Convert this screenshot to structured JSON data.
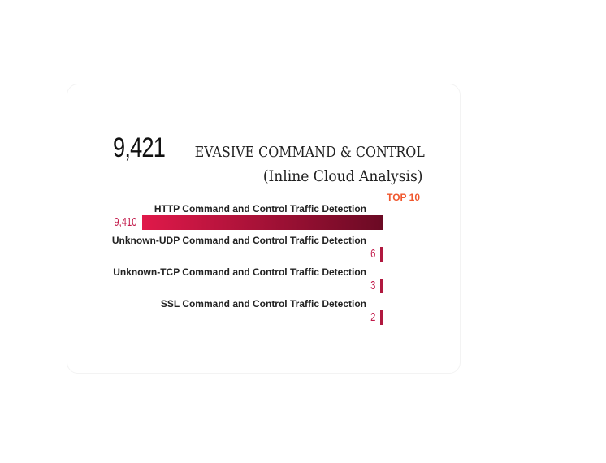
{
  "headline": {
    "total": "9,421",
    "title": "EVASIVE COMMAND & CONTROL",
    "subtitle": "(Inline Cloud Analysis)",
    "badge": "TOP 10"
  },
  "colors": {
    "bar_start": "#e0194a",
    "bar_end": "#6b0a24",
    "value_text": "#c21a4a",
    "badge": "#f0582f"
  },
  "chart_data": {
    "type": "bar",
    "orientation": "horizontal",
    "categories": [
      "HTTP Command and Control Traffic Detection",
      "Unknown-UDP Command and Control Traffic Detection",
      "Unknown-TCP Command and Control Traffic Detection",
      "SSL Command and Control Traffic Detection"
    ],
    "values": [
      9410,
      6,
      3,
      2
    ],
    "value_labels": [
      "9,410",
      "6",
      "3",
      "2"
    ],
    "grid": false
  }
}
